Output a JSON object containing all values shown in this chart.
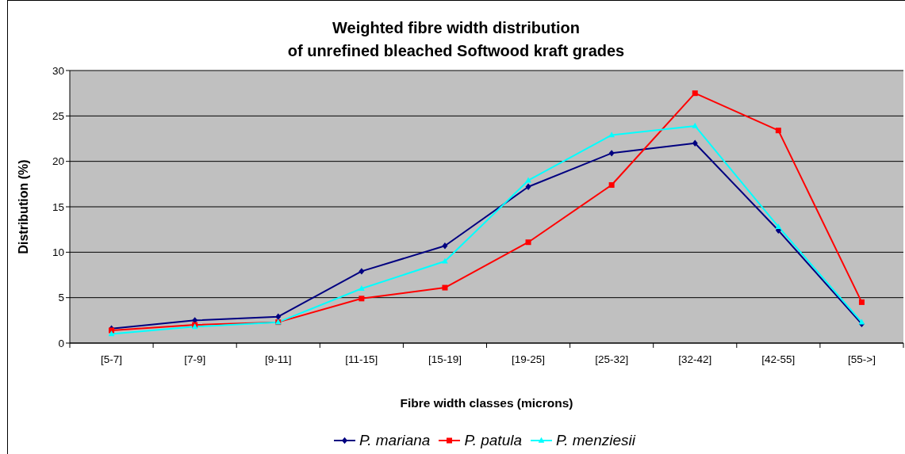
{
  "chart_data": {
    "type": "line",
    "title": "Weighted fibre width distribution\nof unrefined bleached Softwood kraft grades",
    "xlabel": "Fibre width classes (microns)",
    "ylabel": "Distribution (%)",
    "categories": [
      "[5-7]",
      "[7-9]",
      "[9-11]",
      "[11-15]",
      "[15-19]",
      "[19-25]",
      "[25-32]",
      "[32-42]",
      "[42-55]",
      "[55->]"
    ],
    "series": [
      {
        "name": "P. mariana",
        "color": "#000080",
        "marker": "diamond",
        "values": [
          1.6,
          2.5,
          2.9,
          7.9,
          10.7,
          17.2,
          20.9,
          22.0,
          12.4,
          2.1
        ]
      },
      {
        "name": "P. patula",
        "color": "#ff0000",
        "marker": "square",
        "values": [
          1.4,
          2.0,
          2.3,
          4.9,
          6.1,
          11.1,
          17.4,
          27.5,
          23.4,
          4.5
        ]
      },
      {
        "name": "P. menziesii",
        "color": "#00ffff",
        "marker": "triangle",
        "values": [
          1.0,
          1.8,
          2.3,
          6.0,
          9.0,
          17.9,
          22.9,
          23.9,
          12.8,
          2.3
        ]
      }
    ],
    "ylim": [
      0,
      30
    ],
    "yticks": [
      0,
      5,
      10,
      15,
      20,
      25,
      30
    ],
    "grid": "y",
    "legend": "bottom"
  }
}
